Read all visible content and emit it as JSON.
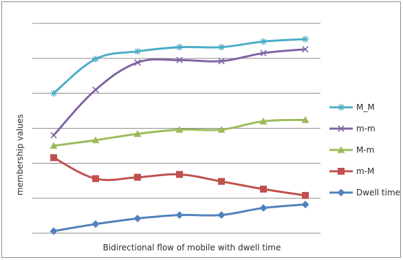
{
  "chart_data": {
    "type": "line",
    "title": "",
    "xlabel": "Bidirectional flow of mobile with dwell time",
    "ylabel": "membership values",
    "x": [
      1,
      2,
      3,
      4,
      5,
      6,
      7
    ],
    "ylim": [
      0,
      6
    ],
    "y_gridlines": [
      0,
      1,
      2,
      3,
      4,
      5,
      6
    ],
    "grid": true,
    "show_tick_labels": false,
    "legend_position": "right",
    "series": [
      {
        "name": "M_M",
        "color": "#4bacc6",
        "marker": "asterisk",
        "values": [
          4.0,
          4.98,
          5.2,
          5.32,
          5.32,
          5.48,
          5.55
        ]
      },
      {
        "name": "m-m",
        "color": "#8064a2",
        "marker": "x",
        "values": [
          2.8,
          4.1,
          4.88,
          4.95,
          4.92,
          5.15,
          5.26
        ]
      },
      {
        "name": "M-m",
        "color": "#9bbb59",
        "marker": "triangle",
        "values": [
          2.5,
          2.66,
          2.84,
          2.96,
          2.96,
          3.2,
          3.24
        ]
      },
      {
        "name": "m-M",
        "color": "#c0504d",
        "marker": "square",
        "values": [
          2.16,
          1.56,
          1.6,
          1.68,
          1.48,
          1.26,
          1.08
        ]
      },
      {
        "name": "Dwell time",
        "color": "#4f81bd",
        "marker": "diamond",
        "values": [
          0.06,
          0.26,
          0.42,
          0.52,
          0.52,
          0.72,
          0.82
        ]
      }
    ]
  }
}
